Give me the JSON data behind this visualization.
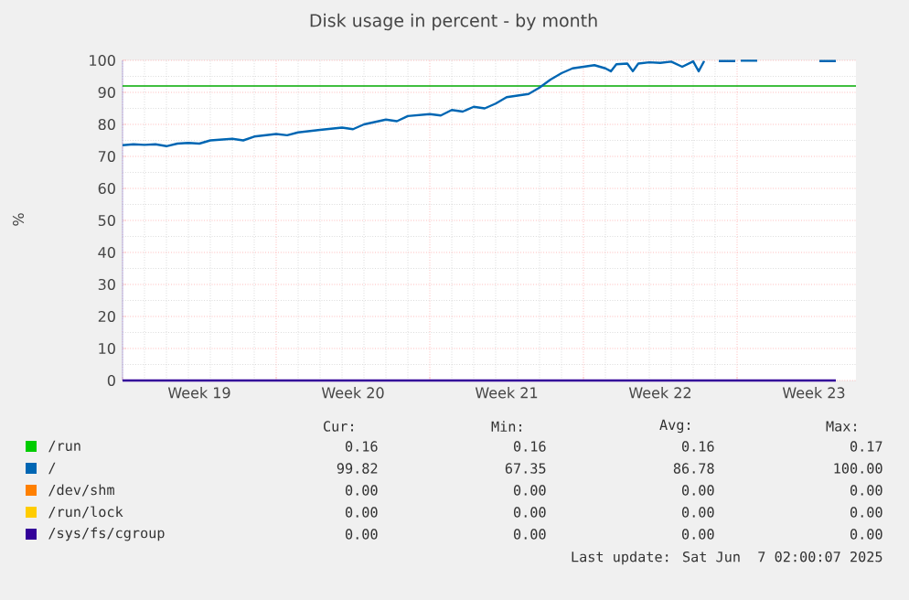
{
  "chart_data": {
    "type": "line",
    "title": "Disk usage in percent - by month",
    "ylabel": "%",
    "xlim": [
      "2025-05-05T00:00",
      "2025-06-07T10:00"
    ],
    "xticks": [
      {
        "value": "2025-05-05T00:00",
        "label": null
      },
      {
        "value": "2025-05-08T12:00",
        "label": "Week 19"
      },
      {
        "value": "2025-05-12T00:00",
        "label": null
      },
      {
        "value": "2025-05-15T12:00",
        "label": "Week 20"
      },
      {
        "value": "2025-05-19T00:00",
        "label": null
      },
      {
        "value": "2025-05-22T12:00",
        "label": "Week 21"
      },
      {
        "value": "2025-05-26T00:00",
        "label": null
      },
      {
        "value": "2025-05-29T12:00",
        "label": "Week 22"
      },
      {
        "value": "2025-06-02T00:00",
        "label": null
      },
      {
        "value": "2025-06-05T12:00",
        "label": "Week 23"
      }
    ],
    "ylim": [
      0,
      100
    ],
    "yticks": [
      0,
      10,
      20,
      30,
      40,
      50,
      60,
      70,
      80,
      90,
      100
    ],
    "grid": true,
    "legend": "bottom",
    "marker": "none",
    "line_style": "solid",
    "ref_lines": [
      {
        "axis": "y",
        "value": 92,
        "color": "#00aa00"
      }
    ],
    "series": [
      {
        "name": "/run",
        "color": "#00cc00"
      },
      {
        "name": "/",
        "color": "#0066b3",
        "x": [
          "2025-05-05T00:00",
          "2025-05-05T12:00",
          "2025-05-06T00:00",
          "2025-05-06T12:00",
          "2025-05-07T00:00",
          "2025-05-07T12:00",
          "2025-05-08T00:00",
          "2025-05-08T12:00",
          "2025-05-09T00:00",
          "2025-05-10T00:00",
          "2025-05-10T12:00",
          "2025-05-11T00:00",
          "2025-05-12T00:00",
          "2025-05-12T12:00",
          "2025-05-13T00:00",
          "2025-05-14T00:00",
          "2025-05-15T00:00",
          "2025-05-15T12:00",
          "2025-05-16T00:00",
          "2025-05-17T00:00",
          "2025-05-17T12:00",
          "2025-05-18T00:00",
          "2025-05-19T00:00",
          "2025-05-19T12:00",
          "2025-05-20T00:00",
          "2025-05-20T12:00",
          "2025-05-21T00:00",
          "2025-05-21T12:00",
          "2025-05-22T00:00",
          "2025-05-22T12:00",
          "2025-05-23T00:00",
          "2025-05-23T12:00",
          "2025-05-24T00:00",
          "2025-05-24T12:00",
          "2025-05-25T00:00",
          "2025-05-25T12:00",
          "2025-05-26T00:00",
          "2025-05-26T12:00",
          "2025-05-27T00:00",
          "2025-05-27T06:00",
          "2025-05-27T12:00",
          "2025-05-28T00:00",
          "2025-05-28T06:00",
          "2025-05-28T12:00",
          "2025-05-29T00:00",
          "2025-05-29T12:00",
          "2025-05-30T00:00",
          "2025-05-30T12:00",
          "2025-05-31T00:00",
          "2025-05-31T06:00",
          "2025-05-31T12:00",
          "2025-06-01T00:00",
          "2025-06-01T04:00",
          "2025-06-01T22:00",
          "2025-06-02T00:00",
          "2025-06-02T04:00",
          "2025-06-02T22:00",
          "2025-06-03T00:00",
          "2025-06-05T18:00",
          "2025-06-06T12:00"
        ],
        "values": [
          73.5,
          73.8,
          73.6,
          73.8,
          73.2,
          74.0,
          74.2,
          74.0,
          75.0,
          75.5,
          75.0,
          76.2,
          77.0,
          76.6,
          77.5,
          78.3,
          79.0,
          78.5,
          80.0,
          81.5,
          81.0,
          82.6,
          83.2,
          82.8,
          84.5,
          84.0,
          85.5,
          85.0,
          86.5,
          88.5,
          89.0,
          89.5,
          91.5,
          94.0,
          96.0,
          97.5,
          98.0,
          98.5,
          97.5,
          96.6,
          98.8,
          99.0,
          96.6,
          99.0,
          99.4,
          99.2,
          99.6,
          98.0,
          99.7,
          96.6,
          99.8,
          null,
          99.8,
          99.8,
          null,
          99.9,
          99.9,
          null,
          99.8,
          99.8
        ]
      },
      {
        "name": "/dev/shm",
        "color": "#ff8000"
      },
      {
        "name": "/run/lock",
        "color": "#ffcc00"
      },
      {
        "name": "/sys/fs/cgroup",
        "color": "#330099",
        "x": [
          "2025-05-05T00:00",
          "2025-06-06T12:00"
        ],
        "values": [
          0,
          0
        ]
      }
    ],
    "annotations": [
      "Cur:",
      "Min:",
      "Avg:",
      "Max:",
      "0.16",
      "0.16",
      "0.16",
      "0.17",
      "99.82",
      "67.35",
      "86.78",
      "100.00",
      "0.00",
      "0.00",
      "0.00",
      "0.00",
      "0.00",
      "0.00",
      "0.00",
      "0.00",
      "0.00",
      "0.00",
      "0.00",
      "0.00",
      "Last update: Sat Jun  7 02:00:07 2025"
    ]
  }
}
